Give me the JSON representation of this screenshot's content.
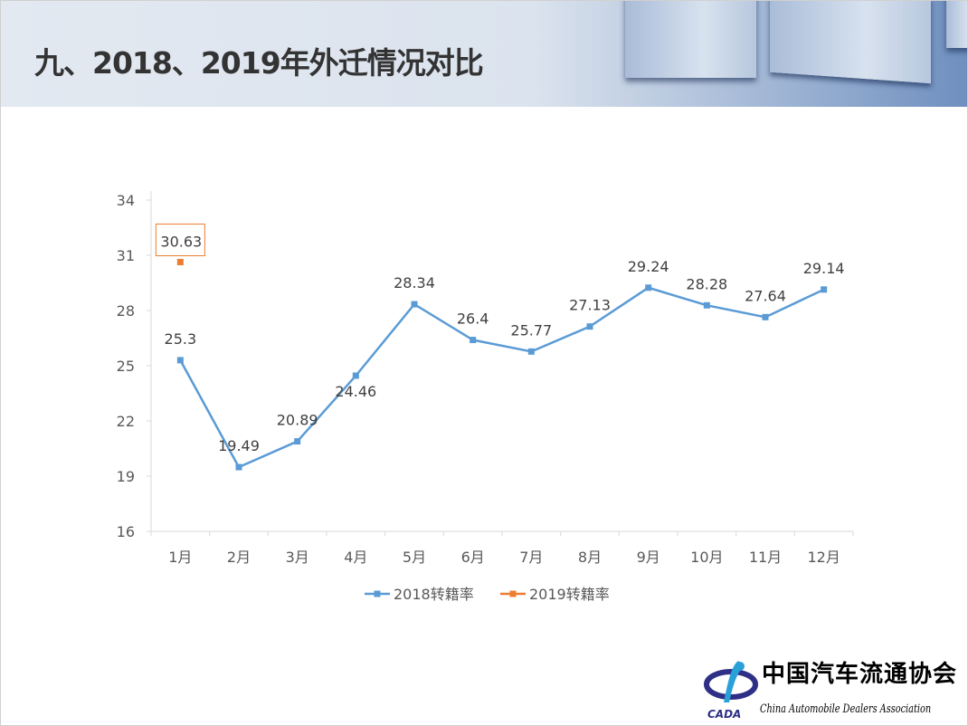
{
  "slide": {
    "title": "九、2018、2019年外迁情况对比"
  },
  "logo": {
    "name_cn": "中国汽车流通协会",
    "name_en": "China Automobile Dealers Association",
    "abbr": "CADA"
  },
  "colors": {
    "series2018": "#5b9bd5",
    "series2019": "#ed7d31",
    "axis": "#d9d9d9",
    "text": "#404040"
  },
  "chart_data": {
    "type": "line",
    "title": "",
    "xlabel": "",
    "ylabel": "",
    "categories": [
      "1月",
      "2月",
      "3月",
      "4月",
      "5月",
      "6月",
      "7月",
      "8月",
      "9月",
      "10月",
      "11月",
      "12月"
    ],
    "ylim": [
      16,
      34
    ],
    "yticks": [
      16,
      19,
      22,
      25,
      28,
      31,
      34
    ],
    "grid": false,
    "legend": "bottom",
    "series": [
      {
        "name": "2018转籍率",
        "values": [
          25.3,
          19.49,
          20.89,
          24.46,
          28.34,
          26.4,
          25.77,
          27.13,
          29.24,
          28.28,
          27.64,
          29.14
        ]
      },
      {
        "name": "2019转籍率",
        "values": [
          30.63,
          null,
          null,
          null,
          null,
          null,
          null,
          null,
          null,
          null,
          null,
          null
        ]
      }
    ]
  }
}
